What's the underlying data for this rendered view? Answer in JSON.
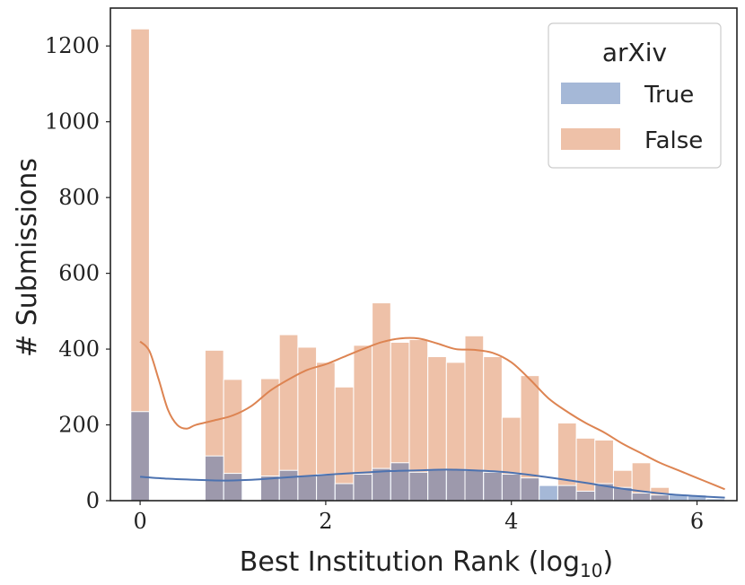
{
  "chart_data": {
    "type": "bar",
    "title": "",
    "xlabel": "Best Institution Rank (log",
    "xlabel_subscript": "10",
    "xlabel_suffix": ")",
    "ylabel": "# Submissions",
    "xlim": [
      -0.32,
      6.43
    ],
    "ylim": [
      0,
      1300
    ],
    "xticks": [
      0,
      2,
      4,
      6
    ],
    "xtick_labels": [
      "0",
      "2",
      "4",
      "6"
    ],
    "yticks": [
      0,
      200,
      400,
      600,
      800,
      1000,
      1200
    ],
    "ytick_labels": [
      "0",
      "200",
      "400",
      "600",
      "800",
      "1000",
      "1200"
    ],
    "grid": false,
    "legend": {
      "title": "arXiv",
      "placement": "top-right"
    },
    "bin_edges": [
      -0.1,
      0.1,
      0.3,
      0.5,
      0.7,
      0.9,
      1.1,
      1.3,
      1.5,
      1.7,
      1.9,
      2.1,
      2.3,
      2.5,
      2.7,
      2.9,
      3.1,
      3.3,
      3.5,
      3.7,
      3.9,
      4.1,
      4.3,
      4.5,
      4.7,
      4.9,
      5.1,
      5.3,
      5.5,
      5.7,
      5.9,
      6.1,
      6.3
    ],
    "series": [
      {
        "name": "True",
        "color": "#4c72b0",
        "values": [
          235,
          0,
          0,
          0,
          118,
          72,
          0,
          65,
          80,
          65,
          70,
          45,
          70,
          85,
          100,
          75,
          82,
          82,
          80,
          75,
          70,
          60,
          40,
          40,
          25,
          45,
          35,
          20,
          15,
          15,
          15,
          5
        ],
        "kde": [
          [
            0,
            63
          ],
          [
            0.3,
            58
          ],
          [
            0.6,
            55
          ],
          [
            0.9,
            53
          ],
          [
            1.2,
            55
          ],
          [
            1.5,
            60
          ],
          [
            1.8,
            65
          ],
          [
            2.1,
            70
          ],
          [
            2.4,
            74
          ],
          [
            2.7,
            78
          ],
          [
            3.0,
            80
          ],
          [
            3.3,
            82
          ],
          [
            3.6,
            80
          ],
          [
            3.9,
            76
          ],
          [
            4.2,
            68
          ],
          [
            4.5,
            58
          ],
          [
            4.8,
            47
          ],
          [
            5.1,
            35
          ],
          [
            5.4,
            25
          ],
          [
            5.7,
            17
          ],
          [
            6.0,
            12
          ],
          [
            6.3,
            8
          ]
        ]
      },
      {
        "name": "False",
        "color": "#dd8452",
        "values": [
          1245,
          0,
          0,
          0,
          397,
          320,
          0,
          322,
          438,
          405,
          365,
          300,
          410,
          522,
          418,
          425,
          380,
          365,
          435,
          380,
          220,
          330,
          0,
          205,
          165,
          160,
          80,
          100,
          35,
          0,
          0,
          0
        ],
        "kde": [
          [
            0,
            420
          ],
          [
            0.1,
            395
          ],
          [
            0.2,
            320
          ],
          [
            0.3,
            240
          ],
          [
            0.4,
            200
          ],
          [
            0.5,
            190
          ],
          [
            0.6,
            200
          ],
          [
            0.8,
            212
          ],
          [
            1.0,
            225
          ],
          [
            1.2,
            250
          ],
          [
            1.4,
            290
          ],
          [
            1.6,
            320
          ],
          [
            1.8,
            345
          ],
          [
            2.0,
            360
          ],
          [
            2.2,
            380
          ],
          [
            2.4,
            400
          ],
          [
            2.6,
            418
          ],
          [
            2.8,
            428
          ],
          [
            3.0,
            428
          ],
          [
            3.2,
            415
          ],
          [
            3.4,
            400
          ],
          [
            3.6,
            398
          ],
          [
            3.8,
            390
          ],
          [
            4.0,
            365
          ],
          [
            4.2,
            320
          ],
          [
            4.4,
            270
          ],
          [
            4.6,
            235
          ],
          [
            4.8,
            205
          ],
          [
            5.0,
            180
          ],
          [
            5.2,
            150
          ],
          [
            5.4,
            125
          ],
          [
            5.6,
            100
          ],
          [
            5.8,
            80
          ],
          [
            6.0,
            60
          ],
          [
            6.2,
            40
          ],
          [
            6.3,
            30
          ]
        ]
      }
    ]
  }
}
